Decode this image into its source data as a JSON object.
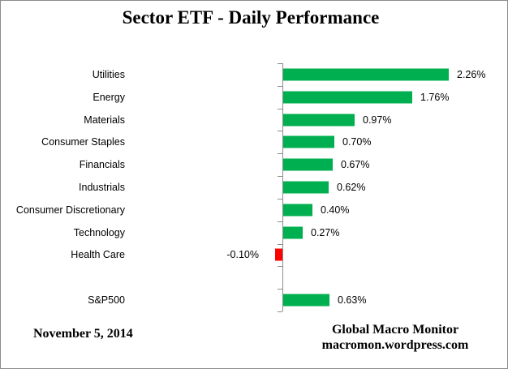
{
  "chart_data": {
    "type": "bar",
    "orientation": "horizontal",
    "title": "Sector ETF - Daily Performance",
    "categories": [
      "Utilities",
      "Energy",
      "Materials",
      "Consumer Staples",
      "Financials",
      "Industrials",
      "Consumer Discretionary",
      "Technology",
      "Health Care",
      "S&P500"
    ],
    "values": [
      2.26,
      1.76,
      0.97,
      0.7,
      0.67,
      0.62,
      0.4,
      0.27,
      -0.1,
      0.63
    ],
    "labels": [
      "2.26%",
      "1.76%",
      "0.97%",
      "0.70%",
      "0.67%",
      "0.62%",
      "0.40%",
      "0.27%",
      "-0.10%",
      "0.63%"
    ],
    "value_suffix": "%",
    "gap_after_index": 8,
    "positive_color": "#00B050",
    "negative_color": "#FF0000",
    "axis_color": "#8c8c8c",
    "grid": false,
    "legend": false
  },
  "footer": {
    "date": "November 5, 2014",
    "source_line1": "Global Macro Monitor",
    "source_line2": "macromon.wordpress.com"
  }
}
